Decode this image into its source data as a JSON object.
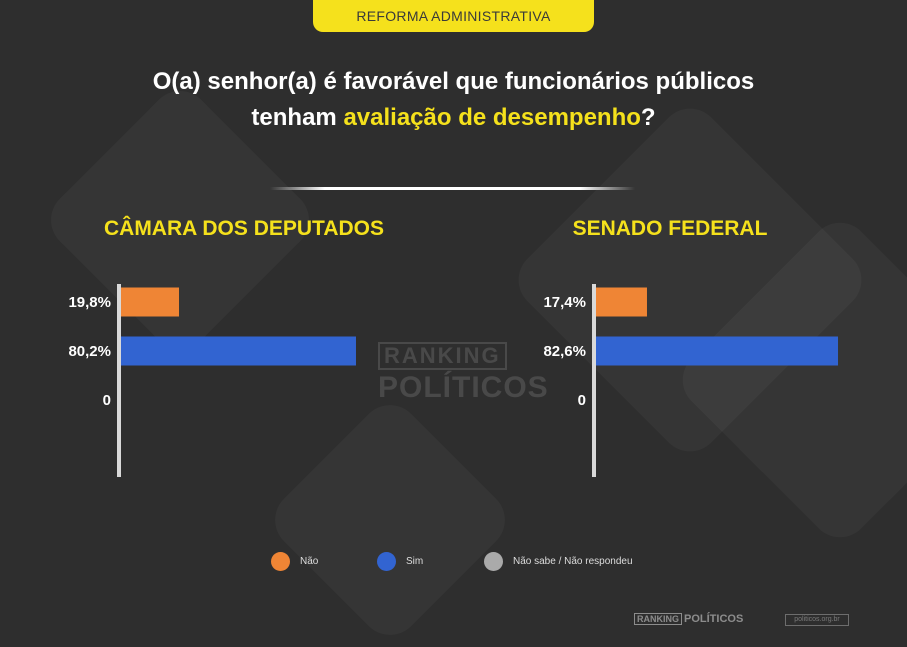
{
  "header": {
    "tag": "REFORMA ADMINISTRATIVA",
    "question_line1": "O(a) senhor(a) é favorável que funcionários públicos",
    "question_line2_pre": "tenham ",
    "question_line2_highlight": "avaliação de desempenho",
    "question_line2_post": "?"
  },
  "colors": {
    "accent": "#f5e11c",
    "nao": "#ef8535",
    "sim": "#3264d1",
    "nao_sabe": "#aaaaaa",
    "background": "#2e2e2e"
  },
  "chart_data": [
    {
      "type": "bar",
      "orientation": "horizontal",
      "title": "CÂMARA DOS DEPUTADOS",
      "categories": [
        "Não",
        "Sim",
        "Não sabe / Não respondeu"
      ],
      "values": [
        19.8,
        80.2,
        0
      ],
      "labels": [
        "19,8%",
        "80,2%",
        "0"
      ],
      "xlim": [
        0,
        100
      ],
      "grid": false
    },
    {
      "type": "bar",
      "orientation": "horizontal",
      "title": "SENADO FEDERAL",
      "categories": [
        "Não",
        "Sim",
        "Não sabe / Não respondeu"
      ],
      "values": [
        17.4,
        82.6,
        0
      ],
      "labels": [
        "17,4%",
        "82,6%",
        "0"
      ],
      "xlim": [
        0,
        100
      ],
      "grid": false
    }
  ],
  "legend": [
    {
      "label": "Não",
      "color": "#ef8535"
    },
    {
      "label": "Sim",
      "color": "#3264d1"
    },
    {
      "label": "Não sabe / Não respondeu",
      "color": "#aaaaaa"
    }
  ],
  "watermark": {
    "line1": "RANKING",
    "line2": "POLÍTICOS"
  },
  "footer": {
    "logo_box": "RANKING",
    "logo_text": "POLÍTICOS",
    "url": "politicos.org.br"
  }
}
